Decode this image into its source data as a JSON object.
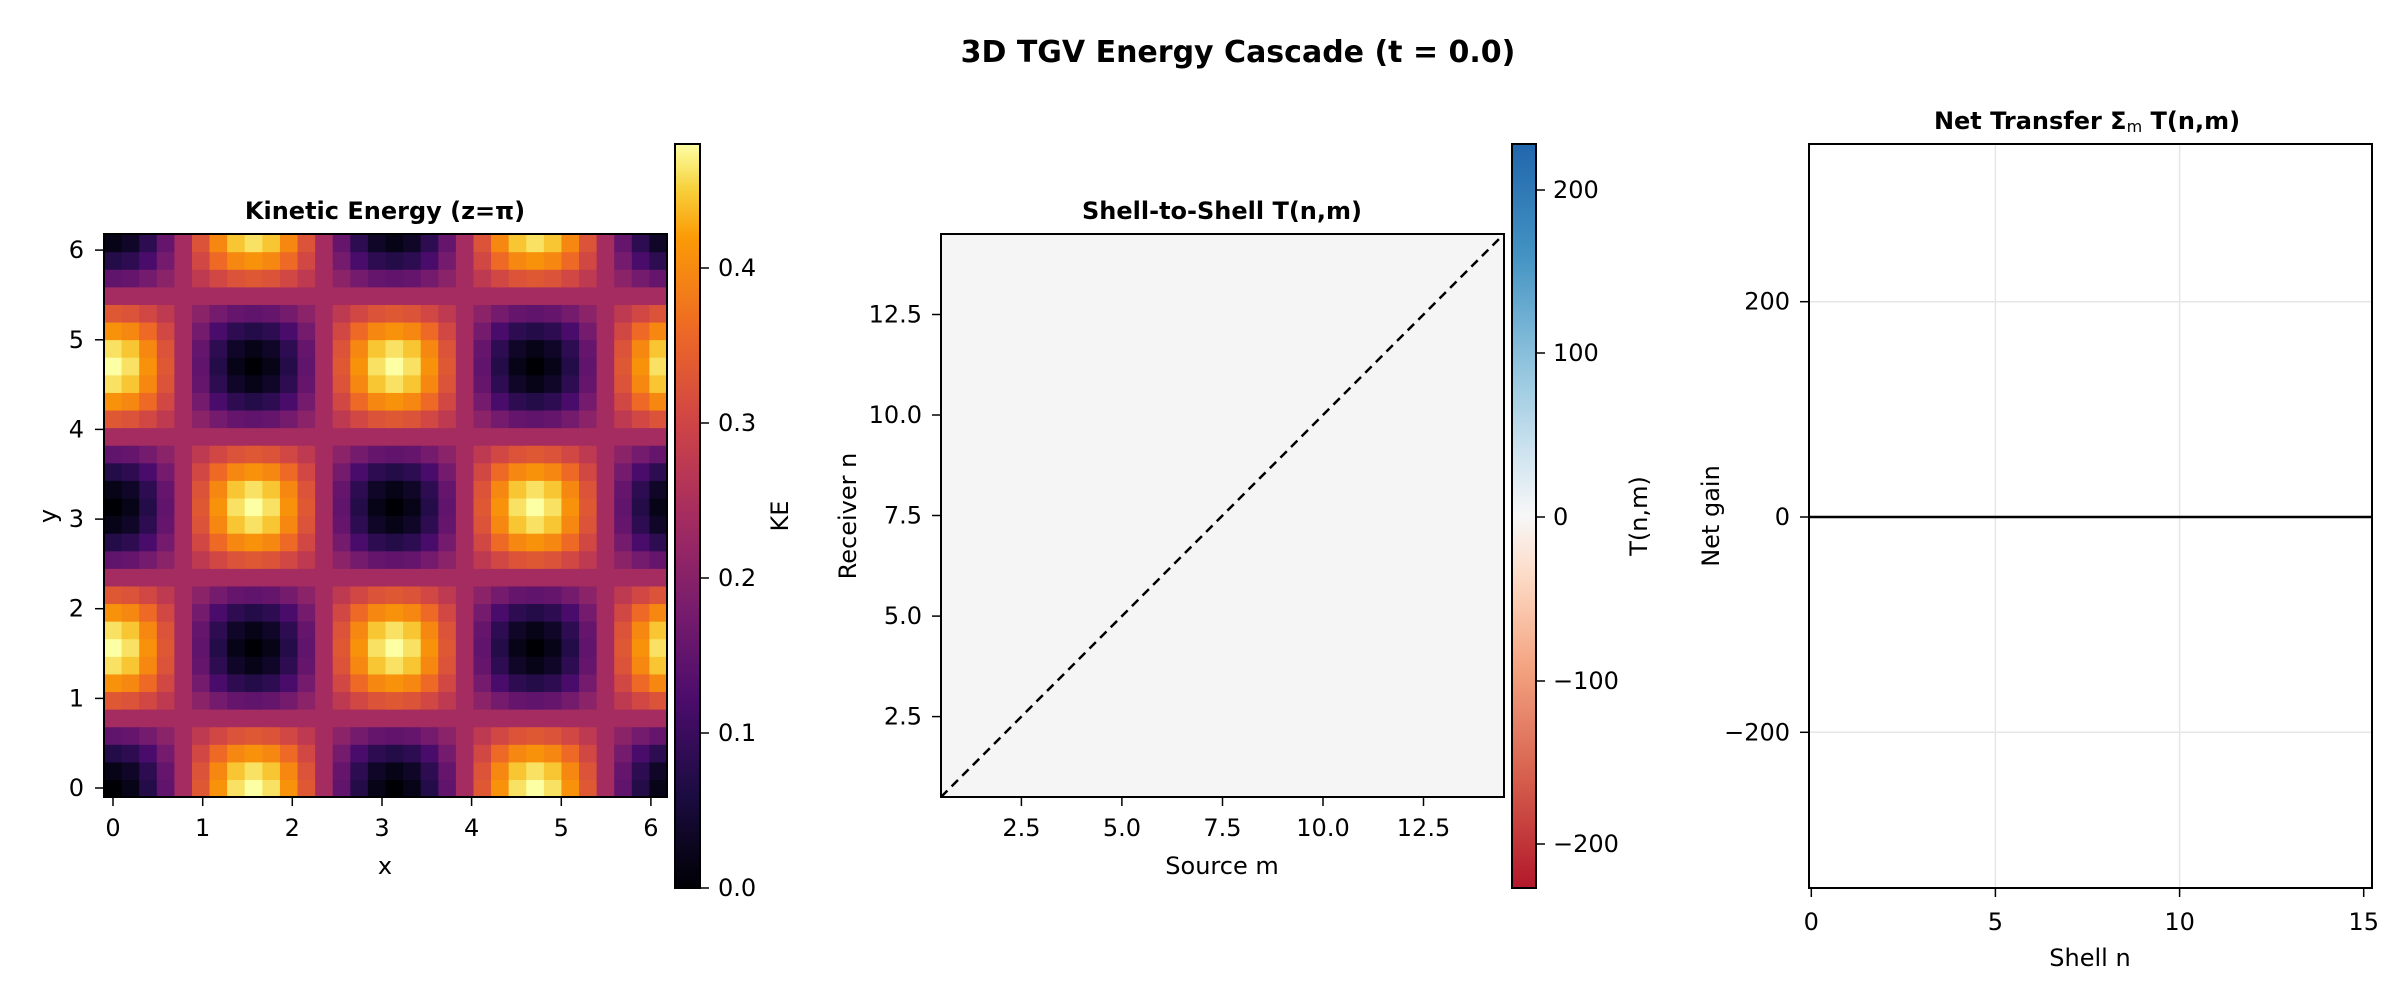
{
  "figure": {
    "title": "3D TGV Energy Cascade  (t = 0.0)"
  },
  "chart_data": [
    {
      "type": "heatmap",
      "title": "Kinetic Energy (z=π)",
      "xlabel": "x",
      "ylabel": "y",
      "xlim": [
        -0.098,
        6.185
      ],
      "ylim": [
        -0.098,
        6.185
      ],
      "xticks": [
        "0",
        "1",
        "2",
        "3",
        "4",
        "5",
        "6"
      ],
      "yticks": [
        "0",
        "1",
        "2",
        "3",
        "4",
        "5",
        "6"
      ],
      "grid_size": [
        32,
        32
      ],
      "z_function": "0.25*(sin(x)^2*cos(y)^2 + cos(x)^2*sin(y)^2)*2 (TGV velocity at z=π), x,y = 2πi/32",
      "z_range": [
        0.0,
        0.48
      ],
      "colormap": "inferno",
      "colorbar": {
        "label": "KE",
        "ticks": [
          "0.0",
          "0.1",
          "0.2",
          "0.3",
          "0.4"
        ],
        "range": [
          0.0,
          0.48
        ]
      }
    },
    {
      "type": "heatmap",
      "title": "Shell-to-Shell T(n,m)",
      "xlabel": "Source m",
      "ylabel": "Receiver n",
      "xlim": [
        0.5,
        14.5
      ],
      "ylim": [
        0.5,
        14.5
      ],
      "xticks": [
        "2.5",
        "5.0",
        "7.5",
        "10.0",
        "12.5"
      ],
      "yticks": [
        "2.5",
        "5.0",
        "7.5",
        "10.0",
        "12.5"
      ],
      "values": "all 0",
      "reference_line": "y = x (dashed)",
      "colormap": "RdBu",
      "colorbar": {
        "label": "T(n,m)",
        "ticks": [
          "200",
          "100",
          "0",
          "−100",
          "−200"
        ],
        "range": [
          -230,
          230
        ]
      }
    },
    {
      "type": "line",
      "title": "Net Transfer Σₘ T(n,m)",
      "title_main": "Net Transfer Σ",
      "title_sub": "m",
      "title_tail": " T(n,m)",
      "xlabel": "Shell n",
      "ylabel": "Net gain",
      "xlim": [
        -0.5,
        15.2
      ],
      "ylim": [
        -345,
        345
      ],
      "xticks": [
        "0",
        "5",
        "10",
        "15"
      ],
      "yticks": [
        "200",
        "0",
        "−200"
      ],
      "grid": true,
      "series": [
        {
          "x": [
            -0.5,
            15.2
          ],
          "y": [
            0,
            0
          ]
        }
      ]
    }
  ]
}
